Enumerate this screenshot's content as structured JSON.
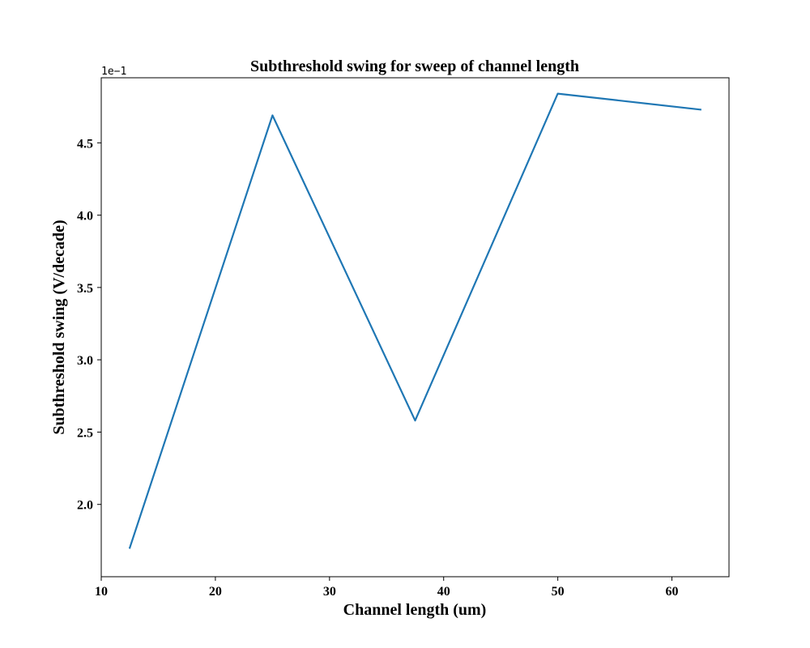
{
  "chart_data": {
    "type": "line",
    "title": "Subthreshold swing for sweep of channel length",
    "xlabel": "Channel length (um)",
    "ylabel": "Subthreshold swing (V/decade)",
    "y_offset_label": "1e−1",
    "xlim": [
      10,
      65
    ],
    "ylim": [
      1.5,
      4.95
    ],
    "xticks": [
      10,
      20,
      30,
      40,
      50,
      60
    ],
    "xtick_labels": [
      "10",
      "20",
      "30",
      "40",
      "50",
      "60"
    ],
    "yticks": [
      2.0,
      2.5,
      3.0,
      3.5,
      4.0,
      4.5
    ],
    "ytick_labels": [
      "2.0",
      "2.5",
      "3.0",
      "3.5",
      "4.0",
      "4.5"
    ],
    "grid": false,
    "series": [
      {
        "color": "#1f77b4",
        "x": [
          12.5,
          25,
          37.5,
          50,
          62.5
        ],
        "y": [
          1.7,
          4.69,
          2.58,
          4.84,
          4.73
        ]
      }
    ]
  }
}
